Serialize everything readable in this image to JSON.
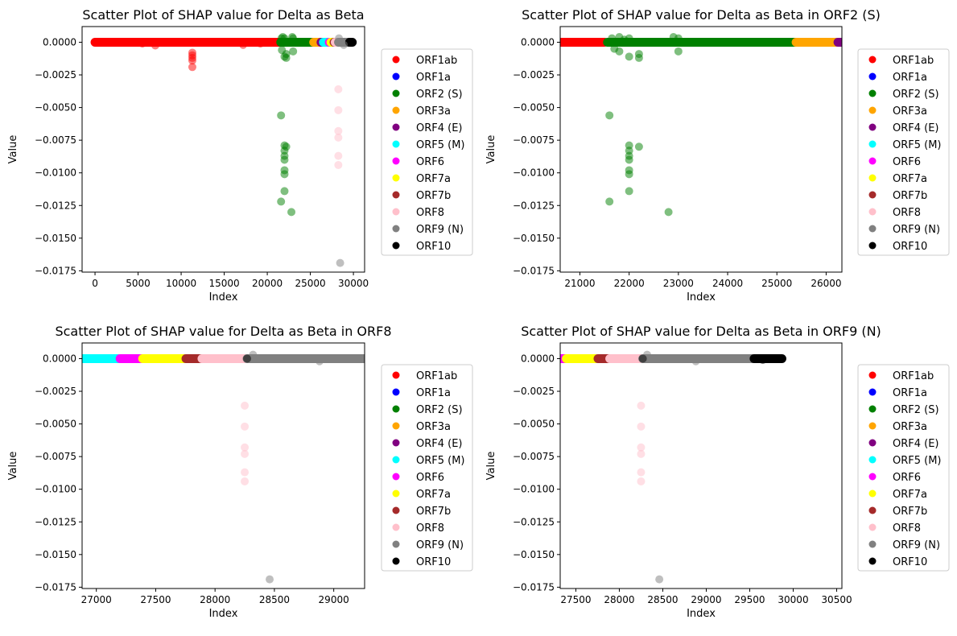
{
  "legend_entries": [
    {
      "name": "ORF1ab",
      "color": "#ff0000"
    },
    {
      "name": "ORF1a",
      "color": "#0000ff"
    },
    {
      "name": "ORF2 (S)",
      "color": "#008000"
    },
    {
      "name": "ORF3a",
      "color": "#ffa500"
    },
    {
      "name": "ORF4 (E)",
      "color": "#800080"
    },
    {
      "name": "ORF5 (M)",
      "color": "#00ffff"
    },
    {
      "name": "ORF6",
      "color": "#ff00ff"
    },
    {
      "name": "ORF7a",
      "color": "#ffff00"
    },
    {
      "name": "ORF7b",
      "color": "#a52a2a"
    },
    {
      "name": "ORF8",
      "color": "#ffc0cb"
    },
    {
      "name": "ORF9 (N)",
      "color": "#808080"
    },
    {
      "name": "ORF10",
      "color": "#000000"
    }
  ],
  "chart_data": [
    {
      "type": "scatter",
      "title": "Scatter Plot of SHAP value for Delta as Beta",
      "xlabel": "Index",
      "ylabel": "Value",
      "xlim": [
        -1500,
        31300
      ],
      "ylim": [
        -0.0176,
        0.0012
      ],
      "xticks": [
        0,
        5000,
        10000,
        15000,
        20000,
        25000,
        30000
      ],
      "yticks": [
        0.0,
        -0.0025,
        -0.005,
        -0.0075,
        -0.01,
        -0.0125,
        -0.015,
        -0.0175
      ],
      "ytick_labels": [
        "0.0000",
        "−0.0025",
        "−0.0050",
        "−0.0075",
        "−0.0100",
        "−0.0125",
        "−0.0150",
        "−0.0175"
      ],
      "legend_position": "right",
      "bands": [
        {
          "series": "ORF1ab",
          "x": [
            0,
            21500
          ]
        },
        {
          "series": "ORF2 (S)",
          "x": [
            21560,
            25380
          ]
        },
        {
          "series": "ORF3a",
          "x": [
            25390,
            26210
          ]
        },
        {
          "series": "ORF4 (E)",
          "x": [
            26240,
            26470
          ]
        },
        {
          "series": "ORF5 (M)",
          "x": [
            26520,
            27190
          ]
        },
        {
          "series": "ORF6",
          "x": [
            27200,
            27380
          ]
        },
        {
          "series": "ORF7a",
          "x": [
            27390,
            27750
          ]
        },
        {
          "series": "ORF7b",
          "x": [
            27755,
            27880
          ]
        },
        {
          "series": "ORF8",
          "x": [
            27890,
            28250
          ]
        },
        {
          "series": "ORF9 (N)",
          "x": [
            28270,
            29530
          ]
        },
        {
          "series": "ORF10",
          "x": [
            29550,
            29870
          ]
        }
      ],
      "points": [
        {
          "series": "ORF1ab",
          "x": 7000,
          "y": -0.00025
        },
        {
          "series": "ORF1ab",
          "x": 5500,
          "y": -0.0001
        },
        {
          "series": "ORF1ab",
          "x": 11300,
          "y": -0.0008
        },
        {
          "series": "ORF1ab",
          "x": 11300,
          "y": -0.001
        },
        {
          "series": "ORF1ab",
          "x": 11300,
          "y": -0.0012
        },
        {
          "series": "ORF1ab",
          "x": 11300,
          "y": -0.0014
        },
        {
          "series": "ORF1ab",
          "x": 11300,
          "y": -0.0019
        },
        {
          "series": "ORF1ab",
          "x": 17200,
          "y": -0.0002
        },
        {
          "series": "ORF1ab",
          "x": 19200,
          "y": -0.0001
        },
        {
          "series": "ORF2 (S)",
          "x": 21600,
          "y": -0.0056
        },
        {
          "series": "ORF2 (S)",
          "x": 21600,
          "y": -0.0122
        },
        {
          "series": "ORF2 (S)",
          "x": 22000,
          "y": -0.0079
        },
        {
          "series": "ORF2 (S)",
          "x": 22000,
          "y": -0.0083
        },
        {
          "series": "ORF2 (S)",
          "x": 22000,
          "y": -0.0087
        },
        {
          "series": "ORF2 (S)",
          "x": 22000,
          "y": -0.009
        },
        {
          "series": "ORF2 (S)",
          "x": 22000,
          "y": -0.0098
        },
        {
          "series": "ORF2 (S)",
          "x": 22000,
          "y": -0.0101
        },
        {
          "series": "ORF2 (S)",
          "x": 22000,
          "y": -0.0114
        },
        {
          "series": "ORF2 (S)",
          "x": 22200,
          "y": -0.008
        },
        {
          "series": "ORF2 (S)",
          "x": 22800,
          "y": -0.013
        },
        {
          "series": "ORF2 (S)",
          "x": 23000,
          "y": -0.0007
        },
        {
          "series": "ORF2 (S)",
          "x": 21700,
          "y": -0.0006
        },
        {
          "series": "ORF2 (S)",
          "x": 22000,
          "y": -0.0011
        },
        {
          "series": "ORF2 (S)",
          "x": 22200,
          "y": -0.0009
        },
        {
          "series": "ORF2 (S)",
          "x": 22200,
          "y": -0.0012
        },
        {
          "series": "ORF2 (S)",
          "x": 21650,
          "y": 0.0003
        },
        {
          "series": "ORF2 (S)",
          "x": 21800,
          "y": 0.0004
        },
        {
          "series": "ORF2 (S)",
          "x": 22000,
          "y": 0.0003
        },
        {
          "series": "ORF2 (S)",
          "x": 22900,
          "y": 0.0004
        },
        {
          "series": "ORF2 (S)",
          "x": 23000,
          "y": 0.0003
        },
        {
          "series": "ORF8",
          "x": 28250,
          "y": -0.0036
        },
        {
          "series": "ORF8",
          "x": 28250,
          "y": -0.0052
        },
        {
          "series": "ORF8",
          "x": 28250,
          "y": -0.0068
        },
        {
          "series": "ORF8",
          "x": 28250,
          "y": -0.0073
        },
        {
          "series": "ORF8",
          "x": 28250,
          "y": -0.0087
        },
        {
          "series": "ORF8",
          "x": 28250,
          "y": -0.0094
        },
        {
          "series": "ORF9 (N)",
          "x": 28460,
          "y": -0.0169
        },
        {
          "series": "ORF9 (N)",
          "x": 28880,
          "y": -0.0002
        },
        {
          "series": "ORF9 (N)",
          "x": 28320,
          "y": 0.0003
        }
      ]
    },
    {
      "type": "scatter",
      "title": "Scatter Plot of SHAP value for Delta as Beta in ORF2 (S)",
      "xlabel": "Index",
      "ylabel": "Value",
      "xlim": [
        20600,
        26320
      ],
      "ylim": [
        -0.0176,
        0.0012
      ],
      "xticks": [
        21000,
        22000,
        23000,
        24000,
        25000,
        26000
      ],
      "yticks": [
        0.0,
        -0.0025,
        -0.005,
        -0.0075,
        -0.01,
        -0.0125,
        -0.015,
        -0.0175
      ],
      "ytick_labels": [
        "0.0000",
        "−0.0025",
        "−0.0050",
        "−0.0075",
        "−0.0100",
        "−0.0125",
        "−0.0150",
        "−0.0175"
      ],
      "legend_position": "right",
      "bands": [
        {
          "series": "ORF1ab",
          "x": [
            20600,
            21500
          ]
        },
        {
          "series": "ORF2 (S)",
          "x": [
            21560,
            25380
          ]
        },
        {
          "series": "ORF3a",
          "x": [
            25390,
            26210
          ]
        },
        {
          "series": "ORF4 (E)",
          "x": [
            26240,
            26320
          ]
        }
      ],
      "points": [
        {
          "series": "ORF2 (S)",
          "x": 21600,
          "y": -0.0056
        },
        {
          "series": "ORF2 (S)",
          "x": 21600,
          "y": -0.0122
        },
        {
          "series": "ORF2 (S)",
          "x": 22000,
          "y": -0.0079
        },
        {
          "series": "ORF2 (S)",
          "x": 22000,
          "y": -0.0083
        },
        {
          "series": "ORF2 (S)",
          "x": 22000,
          "y": -0.0087
        },
        {
          "series": "ORF2 (S)",
          "x": 22000,
          "y": -0.009
        },
        {
          "series": "ORF2 (S)",
          "x": 22000,
          "y": -0.0098
        },
        {
          "series": "ORF2 (S)",
          "x": 22000,
          "y": -0.0101
        },
        {
          "series": "ORF2 (S)",
          "x": 22000,
          "y": -0.0114
        },
        {
          "series": "ORF2 (S)",
          "x": 22200,
          "y": -0.008
        },
        {
          "series": "ORF2 (S)",
          "x": 22800,
          "y": -0.013
        },
        {
          "series": "ORF2 (S)",
          "x": 23000,
          "y": -0.0007
        },
        {
          "series": "ORF2 (S)",
          "x": 21700,
          "y": -0.0005
        },
        {
          "series": "ORF2 (S)",
          "x": 21800,
          "y": -0.0007
        },
        {
          "series": "ORF2 (S)",
          "x": 22000,
          "y": -0.0011
        },
        {
          "series": "ORF2 (S)",
          "x": 22200,
          "y": -0.0009
        },
        {
          "series": "ORF2 (S)",
          "x": 22200,
          "y": -0.0012
        },
        {
          "series": "ORF2 (S)",
          "x": 21650,
          "y": 0.0003
        },
        {
          "series": "ORF2 (S)",
          "x": 21800,
          "y": 0.0004
        },
        {
          "series": "ORF2 (S)",
          "x": 21900,
          "y": 0.0002
        },
        {
          "series": "ORF2 (S)",
          "x": 22000,
          "y": 0.0003
        },
        {
          "series": "ORF2 (S)",
          "x": 22900,
          "y": 0.0004
        },
        {
          "series": "ORF2 (S)",
          "x": 23000,
          "y": 0.0003
        }
      ]
    },
    {
      "type": "scatter",
      "title": "Scatter Plot of SHAP value for Delta as Beta in ORF8",
      "xlabel": "Index",
      "ylabel": "Value",
      "xlim": [
        26880,
        29260
      ],
      "ylim": [
        -0.0176,
        0.0012
      ],
      "xticks": [
        27000,
        27500,
        28000,
        28500,
        29000
      ],
      "yticks": [
        0.0,
        -0.0025,
        -0.005,
        -0.0075,
        -0.01,
        -0.0125,
        -0.015,
        -0.0175
      ],
      "ytick_labels": [
        "0.0000",
        "−0.0025",
        "−0.0050",
        "−0.0075",
        "−0.0100",
        "−0.0125",
        "−0.0150",
        "−0.0175"
      ],
      "legend_position": "right",
      "bands": [
        {
          "series": "ORF5 (M)",
          "x": [
            26880,
            27190
          ]
        },
        {
          "series": "ORF6",
          "x": [
            27200,
            27380
          ]
        },
        {
          "series": "ORF7a",
          "x": [
            27390,
            27750
          ]
        },
        {
          "series": "ORF7b",
          "x": [
            27755,
            27880
          ]
        },
        {
          "series": "ORF8",
          "x": [
            27890,
            28250
          ]
        },
        {
          "series": "ORF9 (N)",
          "x": [
            28270,
            29260
          ]
        }
      ],
      "points": [
        {
          "series": "ORF8",
          "x": 28250,
          "y": -0.0036
        },
        {
          "series": "ORF8",
          "x": 28250,
          "y": -0.0052
        },
        {
          "series": "ORF8",
          "x": 28250,
          "y": -0.0068
        },
        {
          "series": "ORF8",
          "x": 28250,
          "y": -0.0073
        },
        {
          "series": "ORF8",
          "x": 28250,
          "y": -0.0087
        },
        {
          "series": "ORF8",
          "x": 28250,
          "y": -0.0094
        },
        {
          "series": "ORF9 (N)",
          "x": 28460,
          "y": -0.0169
        },
        {
          "series": "ORF9 (N)",
          "x": 28880,
          "y": -0.0002
        },
        {
          "series": "ORF9 (N)",
          "x": 28320,
          "y": 0.0003
        },
        {
          "series": "ORF10",
          "x": 28270,
          "y": 0.0
        }
      ]
    },
    {
      "type": "scatter",
      "title": "Scatter Plot of SHAP value for Delta as Beta in ORF9 (N)",
      "xlabel": "Index",
      "ylabel": "Value",
      "xlim": [
        27320,
        30560
      ],
      "ylim": [
        -0.0176,
        0.0012
      ],
      "xticks": [
        27500,
        28000,
        28500,
        29000,
        29500,
        30000,
        30500
      ],
      "yticks": [
        0.0,
        -0.0025,
        -0.005,
        -0.0075,
        -0.01,
        -0.0125,
        -0.015,
        -0.0175
      ],
      "ytick_labels": [
        "0.0000",
        "−0.0025",
        "−0.0050",
        "−0.0075",
        "−0.0100",
        "−0.0125",
        "−0.0150",
        "−0.0175"
      ],
      "legend_position": "right",
      "bands": [
        {
          "series": "ORF6",
          "x": [
            27320,
            27380
          ]
        },
        {
          "series": "ORF7a",
          "x": [
            27390,
            27750
          ]
        },
        {
          "series": "ORF7b",
          "x": [
            27755,
            27880
          ]
        },
        {
          "series": "ORF8",
          "x": [
            27890,
            28250
          ]
        },
        {
          "series": "ORF9 (N)",
          "x": [
            28270,
            29530
          ]
        },
        {
          "series": "ORF10",
          "x": [
            29550,
            29870
          ]
        }
      ],
      "points": [
        {
          "series": "ORF8",
          "x": 28250,
          "y": -0.0036
        },
        {
          "series": "ORF8",
          "x": 28250,
          "y": -0.0052
        },
        {
          "series": "ORF8",
          "x": 28250,
          "y": -0.0068
        },
        {
          "series": "ORF8",
          "x": 28250,
          "y": -0.0073
        },
        {
          "series": "ORF8",
          "x": 28250,
          "y": -0.0087
        },
        {
          "series": "ORF8",
          "x": 28250,
          "y": -0.0094
        },
        {
          "series": "ORF9 (N)",
          "x": 28460,
          "y": -0.0169
        },
        {
          "series": "ORF9 (N)",
          "x": 28880,
          "y": -0.0002
        },
        {
          "series": "ORF9 (N)",
          "x": 28320,
          "y": 0.0003
        },
        {
          "series": "ORF10",
          "x": 28270,
          "y": 0.0
        },
        {
          "series": "ORF10",
          "x": 29650,
          "y": -0.0001
        }
      ]
    }
  ]
}
